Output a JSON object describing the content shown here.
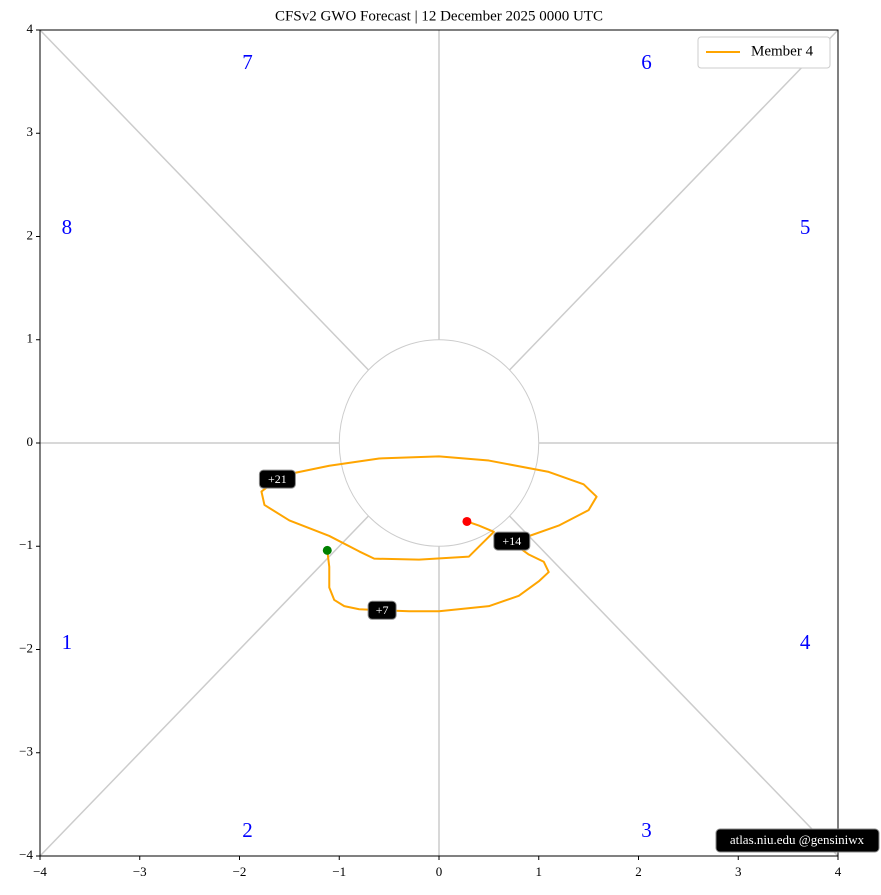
{
  "chart_data": {
    "type": "line",
    "title": "CFSv2 GWO Forecast   |   12  December  2025 0000 UTC",
    "xlim": [
      -4,
      4
    ],
    "ylim": [
      -4,
      4
    ],
    "xticks": [
      {
        "value": -4,
        "label": "−4"
      },
      {
        "value": -3,
        "label": "−3"
      },
      {
        "value": -2,
        "label": "−2"
      },
      {
        "value": -1,
        "label": "−1"
      },
      0,
      1,
      2,
      3,
      4
    ],
    "yticks": [
      {
        "value": -4,
        "label": "−4"
      },
      {
        "value": -3,
        "label": "−3"
      },
      {
        "value": -2,
        "label": "−2"
      },
      {
        "value": -1,
        "label": "−1"
      },
      0,
      1,
      2,
      3,
      4
    ],
    "phase_labels": [
      "1",
      "2",
      "3",
      "4",
      "5",
      "6",
      "7",
      "8"
    ],
    "phase_color": "#0000ff",
    "series": [
      {
        "name": "Member 4",
        "color": "orange",
        "x": [
          -1.12,
          -1.1,
          -1.1,
          -1.05,
          -0.95,
          -0.8,
          -0.57,
          -0.3,
          0,
          0.5,
          0.8,
          1.0,
          1.1,
          1.05,
          0.9,
          0.73,
          1.2,
          1.5,
          1.58,
          1.45,
          1.1,
          0.5,
          0,
          -0.6,
          -1.1,
          -1.5,
          -1.62,
          -1.78,
          -1.75,
          -1.5,
          -1.1,
          -0.8,
          -0.65,
          -0.2,
          0.3,
          0.55,
          0.4,
          0.28
        ],
        "y": [
          -1.04,
          -1.2,
          -1.4,
          -1.52,
          -1.58,
          -1.61,
          -1.62,
          -1.63,
          -1.63,
          -1.58,
          -1.48,
          -1.34,
          -1.25,
          -1.15,
          -1.08,
          -0.96,
          -0.8,
          -0.65,
          -0.52,
          -0.4,
          -0.28,
          -0.17,
          -0.13,
          -0.15,
          -0.22,
          -0.3,
          -0.35,
          -0.47,
          -0.6,
          -0.75,
          -0.9,
          -1.05,
          -1.12,
          -1.13,
          -1.1,
          -0.86,
          -0.8,
          -0.76
        ]
      }
    ],
    "start_color": "green",
    "end_color": "red",
    "annotations": [
      {
        "text": "+7",
        "x": -0.57,
        "y": -1.62
      },
      {
        "text": "+14",
        "x": 0.73,
        "y": -0.95
      },
      {
        "text": "+21",
        "x": -1.62,
        "y": -0.35
      }
    ],
    "watermark": "atlas.niu.edu  @gensiniwx"
  }
}
